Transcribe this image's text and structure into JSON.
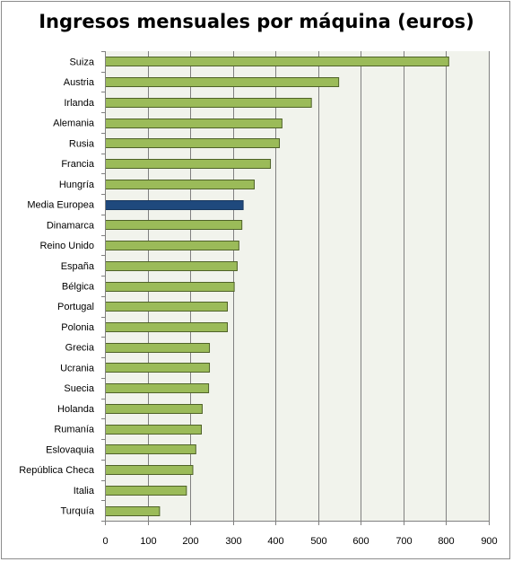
{
  "chart_data": {
    "type": "bar",
    "orientation": "horizontal",
    "title": "Ingresos mensuales por máquina (euros)",
    "xlabel": "",
    "ylabel": "",
    "xlim": [
      0,
      900
    ],
    "xticks": [
      0,
      100,
      200,
      300,
      400,
      500,
      600,
      700,
      800,
      900
    ],
    "grid": true,
    "legend": "none",
    "categories": [
      "Suiza",
      "Austria",
      "Irlanda",
      "Alemania",
      "Rusia",
      "Francia",
      "Hungría",
      "Media Europea",
      "Dinamarca",
      "Reino Unido",
      "España",
      "Bélgica",
      "Portugal",
      "Polonia",
      "Grecia",
      "Ucrania",
      "Suecia",
      "Holanda",
      "Rumanía",
      "Eslovaquia",
      "República Checa",
      "Italia",
      "Turquía"
    ],
    "values": [
      805,
      547,
      483,
      414,
      408,
      387,
      349,
      323,
      320,
      313,
      309,
      302,
      286,
      286,
      244,
      244,
      242,
      227,
      225,
      212,
      205,
      190,
      127
    ],
    "highlight_category": "Media Europea",
    "colors": {
      "bar": "#9bbb59",
      "bar_border": "#4f6228",
      "highlight": "#1f497d",
      "highlight_border": "#17375e",
      "plot_bg": "#f1f3ec",
      "grid": "#808080"
    }
  }
}
